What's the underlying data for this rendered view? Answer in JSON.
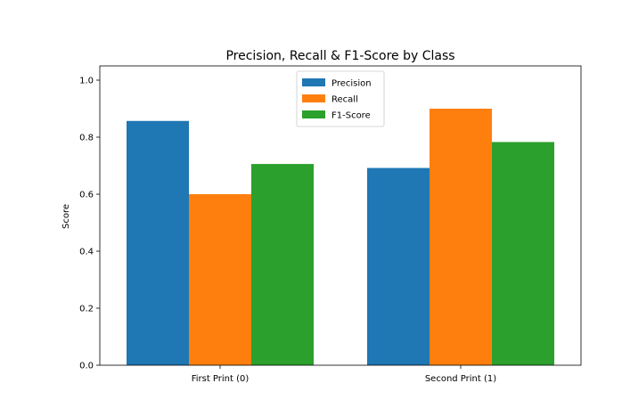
{
  "chart_data": {
    "type": "bar",
    "title": "Precision, Recall & F1-Score by Class",
    "xlabel": "",
    "ylabel": "Score",
    "categories": [
      "First Print (0)",
      "Second Print (1)"
    ],
    "series": [
      {
        "name": "Precision",
        "color": "#1f77b4",
        "values": [
          0.857,
          0.692
        ]
      },
      {
        "name": "Recall",
        "color": "#ff7f0e",
        "values": [
          0.6,
          0.9
        ]
      },
      {
        "name": "F1-Score",
        "color": "#2ca02c",
        "values": [
          0.706,
          0.783
        ]
      }
    ],
    "ylim": [
      0,
      1.05
    ],
    "yticks": [
      "0.0",
      "0.2",
      "0.4",
      "0.6",
      "0.8",
      "1.0"
    ],
    "grid": false,
    "legend_position": "top-center"
  }
}
